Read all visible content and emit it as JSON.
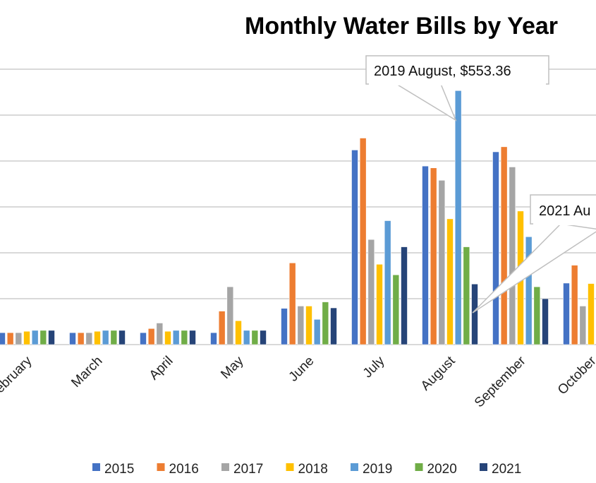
{
  "chart_data": {
    "type": "bar",
    "title": "Monthly Water Bills by Year",
    "xlabel": "",
    "ylabel": "",
    "ylim": [
      0,
      600
    ],
    "grid": true,
    "gridline_values": [
      0,
      100,
      200,
      300,
      400,
      500,
      600
    ],
    "legend_placement": "bottom",
    "categories": [
      "February",
      "March",
      "April",
      "May",
      "June",
      "July",
      "August",
      "September",
      "October"
    ],
    "series": [
      {
        "name": "2015",
        "color": "#4472C4",
        "values": [
          26,
          26,
          26,
          26,
          79,
          424,
          389,
          420,
          134
        ]
      },
      {
        "name": "2016",
        "color": "#ED7D31",
        "values": [
          26,
          26,
          35,
          73,
          178,
          450,
          385,
          431,
          173
        ]
      },
      {
        "name": "2017",
        "color": "#A5A5A5",
        "values": [
          26,
          26,
          47,
          126,
          84,
          229,
          358,
          387,
          84
        ]
      },
      {
        "name": "2018",
        "color": "#FFC000",
        "values": [
          29,
          29,
          29,
          52,
          84,
          175,
          274,
          291,
          133
        ]
      },
      {
        "name": "2019",
        "color": "#5B9BD5",
        "values": [
          31,
          31,
          31,
          31,
          55,
          270,
          553.36,
          235,
          31
        ]
      },
      {
        "name": "2020",
        "color": "#70AD47",
        "values": [
          31,
          31,
          31,
          31,
          93,
          152,
          213,
          126,
          null
        ]
      },
      {
        "name": "2021",
        "color": "#264478",
        "values": [
          31,
          31,
          31,
          31,
          80,
          213,
          132,
          100,
          null
        ]
      }
    ],
    "annotations": [
      {
        "text": "2019 August, $553.36",
        "series": "2019",
        "category": "August"
      },
      {
        "text": "2021 Au",
        "series": "2021",
        "category": "August"
      }
    ]
  }
}
